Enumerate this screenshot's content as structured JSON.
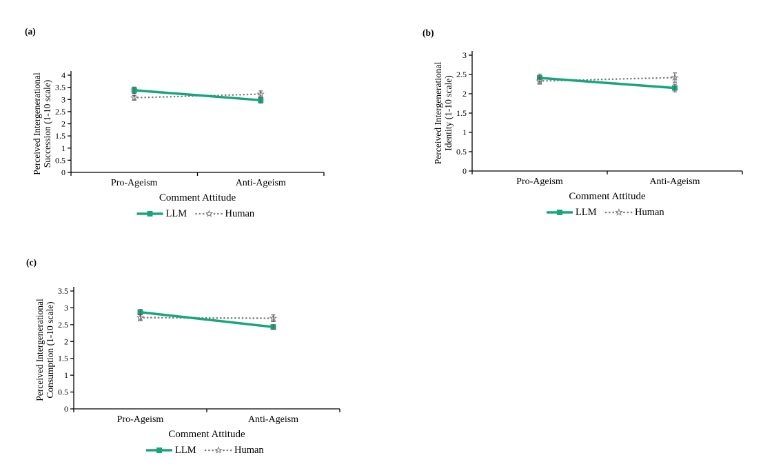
{
  "figure": {
    "background": "#ffffff",
    "description": "Three-panel line figure comparing LLM and Human perceived intergenerational threat ratings by comment attitude"
  },
  "colors": {
    "llm": "#17A57D",
    "human": "#7F7F7F",
    "error_bar": "#595959",
    "axis": "#000000",
    "marker_fill": "#ffffff"
  },
  "chart_data": [
    {
      "type": "line",
      "panel_label": "(a)",
      "ylabel_lines": [
        "Perceived Intergenerational",
        "Succession  (1-10 scale)"
      ],
      "xlabel": "Comment Attitude",
      "categories": [
        "Pro-Ageism",
        "Anti-Ageism"
      ],
      "ylim": [
        0,
        4
      ],
      "ytick_step": 0.5,
      "grid": false,
      "legend_position": "bottom",
      "series": [
        {
          "name": "LLM",
          "values": [
            3.38,
            2.97
          ],
          "errors": [
            0.13,
            0.12
          ],
          "line": "solid",
          "marker": "square"
        },
        {
          "name": "Human",
          "values": [
            3.07,
            3.22
          ],
          "errors": [
            0.1,
            0.13
          ],
          "line": "dotted",
          "marker": "open-star"
        }
      ]
    },
    {
      "type": "line",
      "panel_label": "(b)",
      "ylabel_lines": [
        "Perceived Intergenerational",
        "Identity (1-10 scale)"
      ],
      "xlabel": "Comment Attitude",
      "categories": [
        "Pro-Ageism",
        "Anti-Ageism"
      ],
      "ylim": [
        0,
        3
      ],
      "ytick_step": 0.5,
      "grid": false,
      "legend_position": "bottom",
      "series": [
        {
          "name": "LLM",
          "values": [
            2.41,
            2.15
          ],
          "errors": [
            0.1,
            0.1
          ],
          "line": "solid",
          "marker": "square"
        },
        {
          "name": "Human",
          "values": [
            2.33,
            2.42
          ],
          "errors": [
            0.08,
            0.12
          ],
          "line": "dotted",
          "marker": "open-star"
        }
      ]
    },
    {
      "type": "line",
      "panel_label": "(c)",
      "ylabel_lines": [
        "Perceived Intergenerational",
        "Consumption  (1-10 scale)"
      ],
      "xlabel": "Comment Attitude",
      "categories": [
        "Pro-Ageism",
        "Anti-Ageism"
      ],
      "ylim": [
        0,
        3.5
      ],
      "ytick_step": 0.5,
      "grid": false,
      "legend_position": "bottom",
      "series": [
        {
          "name": "LLM",
          "values": [
            2.87,
            2.43
          ],
          "errors": [
            0.08,
            0.07
          ],
          "line": "solid",
          "marker": "square"
        },
        {
          "name": "Human",
          "values": [
            2.71,
            2.69
          ],
          "errors": [
            0.09,
            0.1
          ],
          "line": "dotted",
          "marker": "open-star"
        }
      ]
    }
  ]
}
